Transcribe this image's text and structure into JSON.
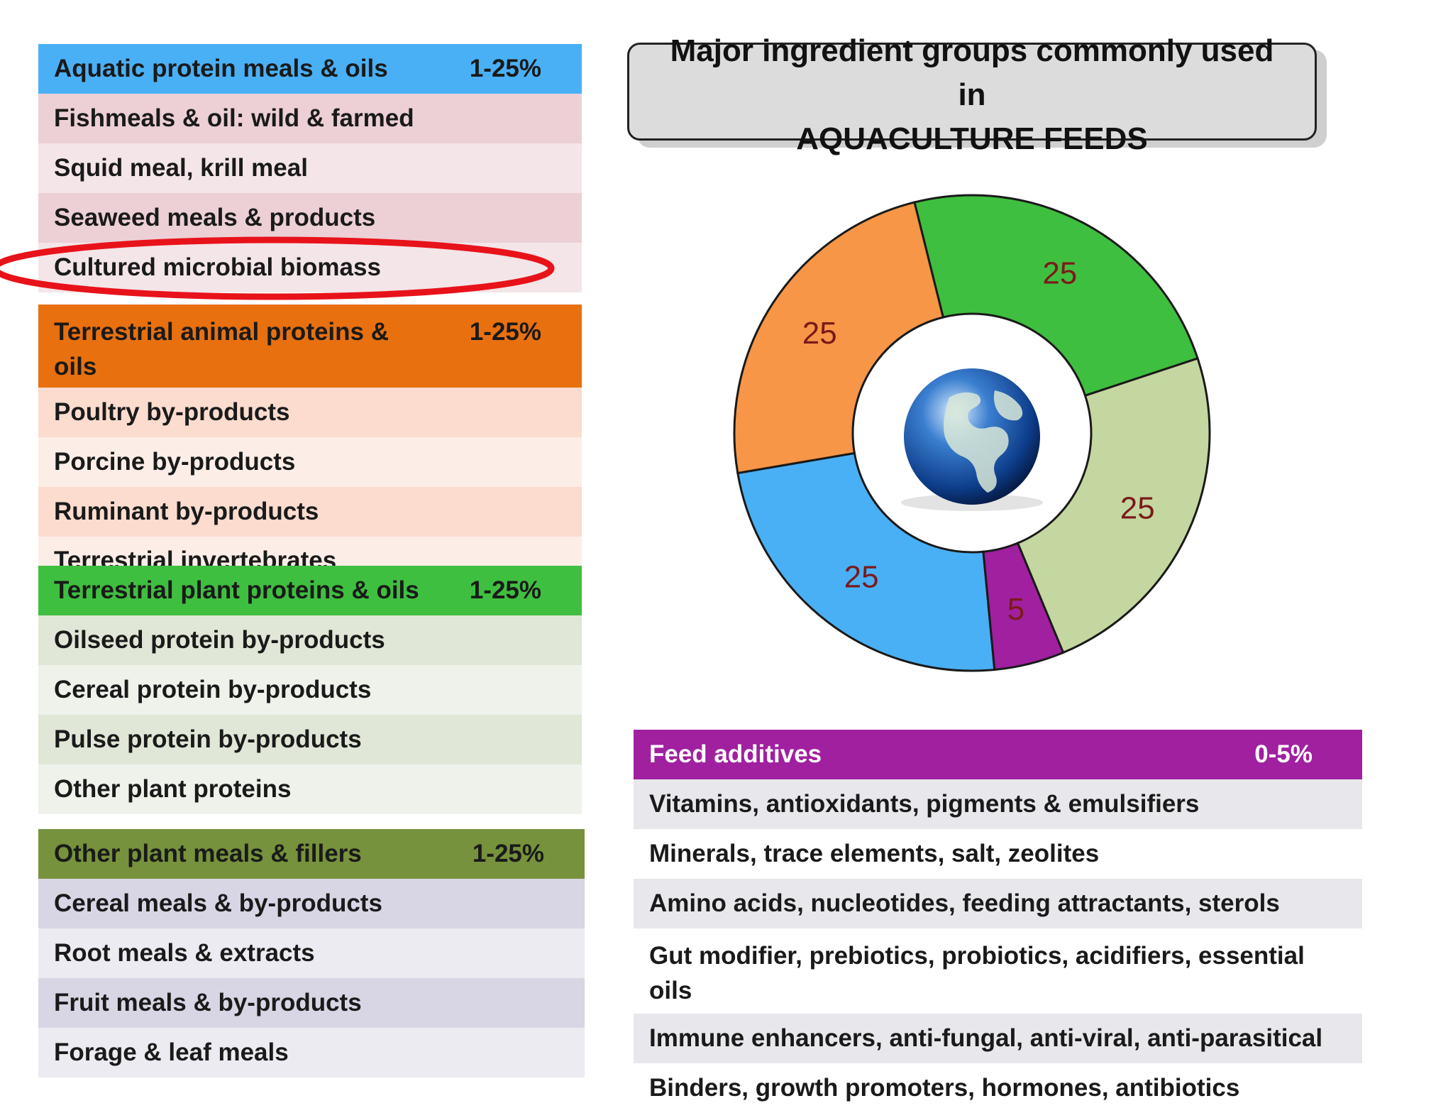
{
  "title": {
    "line1": "Major ingredient groups commonly used",
    "line2": "in",
    "line3": "AQUACULTURE FEEDS"
  },
  "groups": [
    {
      "header": "Aquatic protein meals & oils",
      "pct": "1-25%",
      "header_color": "#4ab0f5",
      "row_colors": [
        "#ecd0d6",
        "#f4e5e8"
      ],
      "items": [
        "Fishmeals & oil: wild & farmed",
        "Squid meal, krill meal",
        "Seaweed meals & products",
        "Cultured microbial biomass"
      ]
    },
    {
      "header": "Terrestrial animal proteins & oils",
      "pct": "1-25%",
      "header_color": "#e8700e",
      "row_colors": [
        "#fbdccf",
        "#fdede7"
      ],
      "items": [
        "Poultry by-products",
        "Porcine by-products",
        "Ruminant by-products",
        "Terrestrial invertebrates"
      ]
    },
    {
      "header": "Terrestrial plant proteins & oils",
      "pct": "1-25%",
      "header_color": "#3fbf3f",
      "row_colors": [
        "#e1e7d6",
        "#eef2eb"
      ],
      "items": [
        "Oilseed protein by-products",
        "Cereal protein by-products",
        "Pulse protein by-products",
        "Other plant proteins"
      ]
    },
    {
      "header": "Other plant meals & fillers",
      "pct": "1-25%",
      "header_color": "#76923c",
      "row_colors": [
        "#d8d6e4",
        "#ebebf1"
      ],
      "items": [
        "Cereal meals & by-products",
        "Root meals & extracts",
        "Fruit meals & by-products",
        "Forage & leaf meals"
      ]
    }
  ],
  "additives": {
    "header": "Feed additives",
    "pct": "0-5%",
    "header_color": "#a020a0",
    "row_colors": [
      "#e8e8ec",
      "#ffffff"
    ],
    "items": [
      "Vitamins, antioxidants, pigments & emulsifiers",
      "Minerals, trace elements, salt, zeolites",
      "Amino acids, nucleotides, feeding attractants, sterols",
      "Gut modifier, prebiotics, probiotics, acidifiers, essential oils",
      "Immune enhancers, anti-fungal, anti-viral, anti-parasitical",
      "Binders, growth promoters, hormones, antibiotics"
    ]
  },
  "chart_data": {
    "type": "pie",
    "style": "donut",
    "values": [
      25,
      25,
      5,
      25,
      25
    ],
    "labels": [
      "25",
      "25",
      "5",
      "25",
      "25"
    ],
    "colors": [
      "#3fbf3f",
      "#c5d7a0",
      "#a020a0",
      "#4ab0f5",
      "#f79646"
    ],
    "label_color": "#7a1a1a",
    "center_icon": "globe-icon"
  },
  "highlight": {
    "color": "#e8121a",
    "target": "Cultured microbial biomass"
  }
}
